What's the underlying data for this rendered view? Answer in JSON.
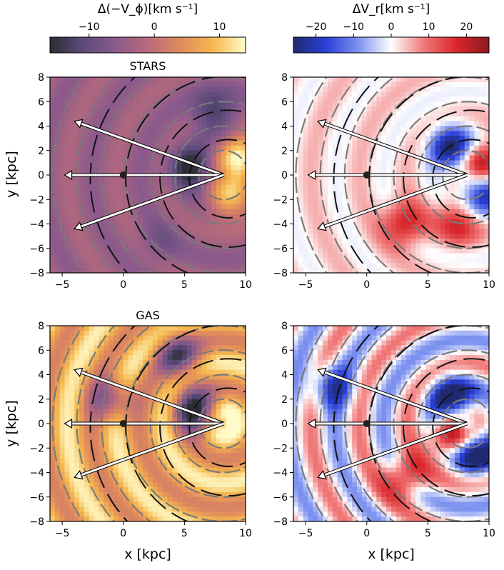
{
  "colorbars": [
    {
      "id": "vphi",
      "label": "Δ(−V_ϕ)[km s⁻¹]",
      "range": [
        -16,
        14
      ],
      "ticks": [
        {
          "v": -10,
          "t": "−10"
        },
        {
          "v": 0,
          "t": "0"
        },
        {
          "v": 10,
          "t": "10"
        }
      ],
      "colormap": [
        "#2d2d33",
        "#5c4a7c",
        "#8a5a8c",
        "#b86a7a",
        "#e08a5c",
        "#f5b84e",
        "#fffbc8"
      ]
    },
    {
      "id": "vr",
      "label": "ΔV_r[km s⁻¹]",
      "range": [
        -26,
        26
      ],
      "ticks": [
        {
          "v": -20,
          "t": "−20"
        },
        {
          "v": -10,
          "t": "−10"
        },
        {
          "v": 0,
          "t": "0"
        },
        {
          "v": 10,
          "t": "10"
        },
        {
          "v": 20,
          "t": "20"
        }
      ],
      "colormap": [
        "#1f2a6e",
        "#2a3fd8",
        "#7f93f0",
        "#ffffff",
        "#f07878",
        "#d9262c",
        "#8a1a20"
      ]
    }
  ],
  "chart_data": [
    {
      "type": "heatmap",
      "panel": "stars-vphi",
      "title": "STARS",
      "field": "Δ(−V_ϕ)",
      "colorbar": "vphi",
      "xlabel": "",
      "ylabel": "y [kpc]",
      "xlim": [
        -6,
        10
      ],
      "ylim": [
        -8,
        8
      ],
      "xticks": [
        -5,
        0,
        5,
        10
      ],
      "yticks": [
        -8,
        -6,
        -4,
        -2,
        0,
        2,
        4,
        6,
        8
      ],
      "base": -4,
      "features": [
        {
          "x": 9.5,
          "y": 1.6,
          "v": 14
        },
        {
          "x": 8.8,
          "y": -1.8,
          "v": 10
        },
        {
          "x": 5.5,
          "y": 0.6,
          "v": -16
        },
        {
          "x": 7.5,
          "y": 5.0,
          "v": -14
        },
        {
          "x": 3.0,
          "y": -5.5,
          "v": -8
        }
      ],
      "sun": {
        "x": 0,
        "y": 0
      },
      "observer": {
        "x": 8.2,
        "y": 0
      },
      "arrows": [
        {
          "x": -4,
          "y": 4.4
        },
        {
          "x": -4.8,
          "y": 0
        },
        {
          "x": -4,
          "y": -4.4
        }
      ]
    },
    {
      "type": "heatmap",
      "panel": "stars-vr",
      "title": "",
      "field": "ΔV_r",
      "colorbar": "vr",
      "xlabel": "",
      "ylabel": "",
      "xlim": [
        -6,
        10
      ],
      "ylim": [
        -8,
        8
      ],
      "xticks": [
        -5,
        0,
        5,
        10
      ],
      "yticks": [
        -8,
        -6,
        -4,
        -2,
        0,
        2,
        4,
        6,
        8
      ],
      "base": 2,
      "features": [
        {
          "x": 7.0,
          "y": 2.2,
          "v": -26
        },
        {
          "x": 9.5,
          "y": -1.5,
          "v": -22
        },
        {
          "x": 3.0,
          "y": -4.0,
          "v": 20
        },
        {
          "x": 9.5,
          "y": 1.0,
          "v": 24
        },
        {
          "x": 7.5,
          "y": -3.8,
          "v": 18
        }
      ],
      "sun": {
        "x": 0,
        "y": 0
      },
      "observer": {
        "x": 8.2,
        "y": 0
      },
      "arrows": [
        {
          "x": -4,
          "y": 4.4
        },
        {
          "x": -4.8,
          "y": 0
        },
        {
          "x": -4,
          "y": -4.4
        }
      ]
    },
    {
      "type": "heatmap",
      "panel": "gas-vphi",
      "title": "GAS",
      "field": "Δ(−V_ϕ)",
      "colorbar": "vphi",
      "xlabel": "x [kpc]",
      "ylabel": "y [kpc]",
      "xlim": [
        -6,
        10
      ],
      "ylim": [
        -8,
        8
      ],
      "xticks": [
        -5,
        0,
        5,
        10
      ],
      "yticks": [
        -8,
        -6,
        -4,
        -2,
        0,
        2,
        4,
        6,
        8
      ],
      "base": 8,
      "features": [
        {
          "x": 8.0,
          "y": 0.5,
          "v": 14
        },
        {
          "x": 6.0,
          "y": 1.0,
          "v": -16
        },
        {
          "x": 4.5,
          "y": 5.5,
          "v": -10
        },
        {
          "x": -1.0,
          "y": 2.0,
          "v": -6
        }
      ],
      "sun": {
        "x": 0,
        "y": 0
      },
      "observer": {
        "x": 8.2,
        "y": 0
      },
      "arrows": [
        {
          "x": -4,
          "y": 4.4
        },
        {
          "x": -4.8,
          "y": 0
        },
        {
          "x": -4,
          "y": -4.4
        }
      ]
    },
    {
      "type": "heatmap",
      "panel": "gas-vr",
      "title": "",
      "field": "ΔV_r",
      "colorbar": "vr",
      "xlabel": "x [kpc]",
      "ylabel": "",
      "xlim": [
        -6,
        10
      ],
      "ylim": [
        -8,
        8
      ],
      "xticks": [
        -5,
        0,
        5,
        10
      ],
      "yticks": [
        -8,
        -6,
        -4,
        -2,
        0,
        2,
        4,
        6,
        8
      ],
      "base": 0,
      "features": [
        {
          "x": 7.0,
          "y": 2.0,
          "v": -26
        },
        {
          "x": 9.0,
          "y": -2.5,
          "v": -26
        },
        {
          "x": 6.5,
          "y": -1.2,
          "v": 22
        },
        {
          "x": 3.0,
          "y": -4.5,
          "v": 20
        },
        {
          "x": -3.0,
          "y": 3.0,
          "v": -18
        }
      ],
      "sun": {
        "x": 0,
        "y": 0
      },
      "observer": {
        "x": 8.2,
        "y": 0
      },
      "arrows": [
        {
          "x": -4,
          "y": 4.4
        },
        {
          "x": -4.8,
          "y": 0
        },
        {
          "x": -4,
          "y": -4.4
        }
      ]
    }
  ]
}
